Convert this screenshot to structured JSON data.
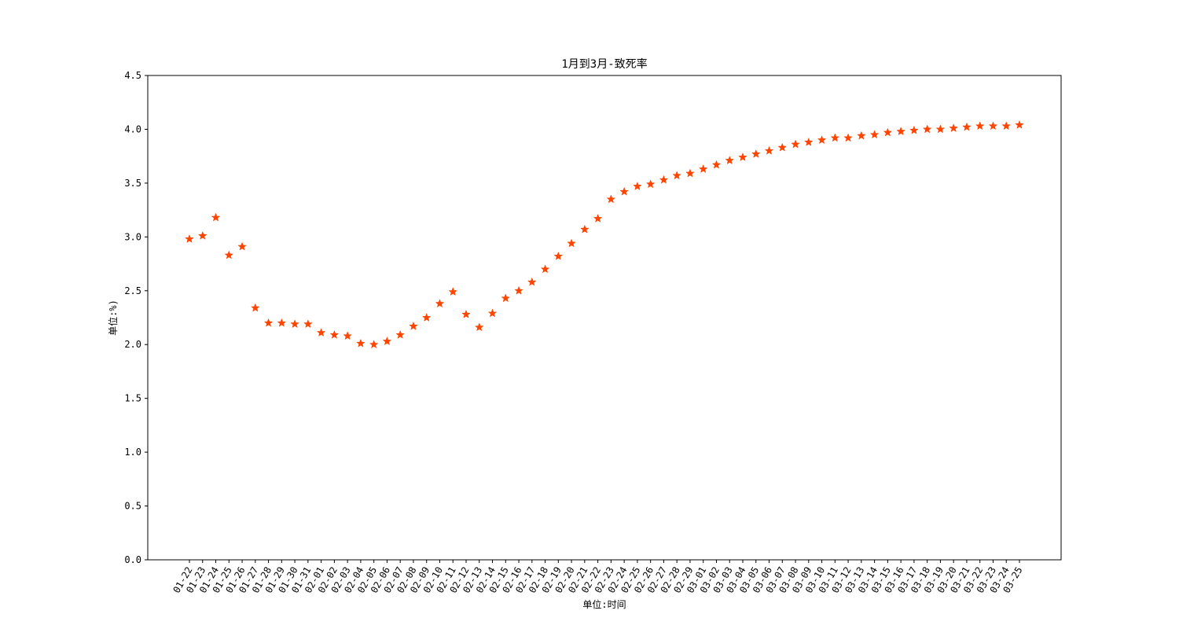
{
  "chart_data": {
    "type": "scatter",
    "title": "1月到3月-致死率",
    "xlabel": "单位:时间",
    "ylabel": "单位:%)",
    "ylim": [
      0,
      4.5
    ],
    "yticks": [
      "0.0",
      "0.5",
      "1.0",
      "1.5",
      "2.0",
      "2.5",
      "3.0",
      "3.5",
      "4.0",
      "4.5"
    ],
    "marker": "star",
    "marker_color": "#ff4500",
    "grid": false,
    "x": [
      "01-22",
      "01-23",
      "01-24",
      "01-25",
      "01-26",
      "01-27",
      "01-28",
      "01-29",
      "01-30",
      "01-31",
      "02-01",
      "02-02",
      "02-03",
      "02-04",
      "02-05",
      "02-06",
      "02-07",
      "02-08",
      "02-09",
      "02-10",
      "02-11",
      "02-12",
      "02-13",
      "02-14",
      "02-15",
      "02-16",
      "02-17",
      "02-18",
      "02-19",
      "02-20",
      "02-21",
      "02-22",
      "02-23",
      "02-24",
      "02-25",
      "02-26",
      "02-27",
      "02-28",
      "02-29",
      "03-01",
      "03-02",
      "03-03",
      "03-04",
      "03-05",
      "03-06",
      "03-07",
      "03-08",
      "03-09",
      "03-10",
      "03-11",
      "03-12",
      "03-13",
      "03-14",
      "03-15",
      "03-16",
      "03-17",
      "03-18",
      "03-19",
      "03-20",
      "03-21",
      "03-22",
      "03-23",
      "03-24",
      "03-25"
    ],
    "values": [
      2.98,
      3.01,
      3.18,
      2.83,
      2.91,
      2.34,
      2.2,
      2.2,
      2.19,
      2.19,
      2.11,
      2.09,
      2.08,
      2.01,
      2.0,
      2.03,
      2.09,
      2.17,
      2.25,
      2.38,
      2.49,
      2.28,
      2.16,
      2.29,
      2.43,
      2.5,
      2.58,
      2.7,
      2.82,
      2.94,
      3.07,
      3.17,
      3.35,
      3.42,
      3.47,
      3.49,
      3.53,
      3.57,
      3.59,
      3.63,
      3.67,
      3.71,
      3.74,
      3.77,
      3.8,
      3.83,
      3.86,
      3.88,
      3.9,
      3.92,
      3.92,
      3.94,
      3.95,
      3.97,
      3.98,
      3.99,
      4.0,
      4.0,
      4.01,
      4.02,
      4.03,
      4.03,
      4.03,
      4.04
    ]
  }
}
